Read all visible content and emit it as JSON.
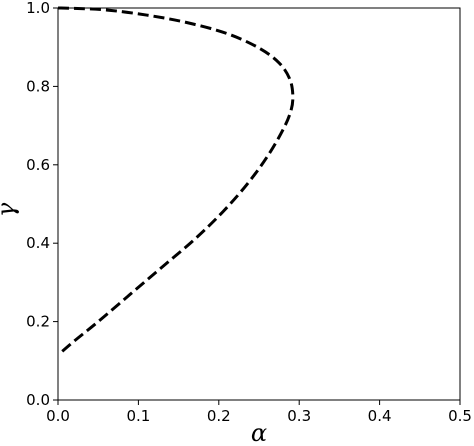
{
  "chart_data": {
    "type": "line",
    "xlabel": "α",
    "ylabel": "γ",
    "xlim": [
      0.0,
      0.5
    ],
    "ylim": [
      0.0,
      1.0
    ],
    "x_ticks": [
      "0.0",
      "0.1",
      "0.2",
      "0.3",
      "0.4",
      "0.5"
    ],
    "y_ticks": [
      "0.0",
      "0.2",
      "0.4",
      "0.6",
      "0.8",
      "1.0"
    ],
    "grid": false,
    "series": [
      {
        "line_style": "dashed",
        "color": "#000000",
        "x": [
          0.0,
          0.02,
          0.06,
          0.11,
          0.16,
          0.21,
          0.25,
          0.275,
          0.288,
          0.292,
          0.29,
          0.28,
          0.26,
          0.235,
          0.205,
          0.17,
          0.13,
          0.09,
          0.05,
          0.02,
          0.003
        ],
        "y": [
          1.0,
          0.999,
          0.995,
          0.982,
          0.963,
          0.935,
          0.898,
          0.86,
          0.82,
          0.78,
          0.74,
          0.69,
          0.62,
          0.55,
          0.48,
          0.41,
          0.34,
          0.27,
          0.2,
          0.15,
          0.12
        ]
      }
    ]
  }
}
